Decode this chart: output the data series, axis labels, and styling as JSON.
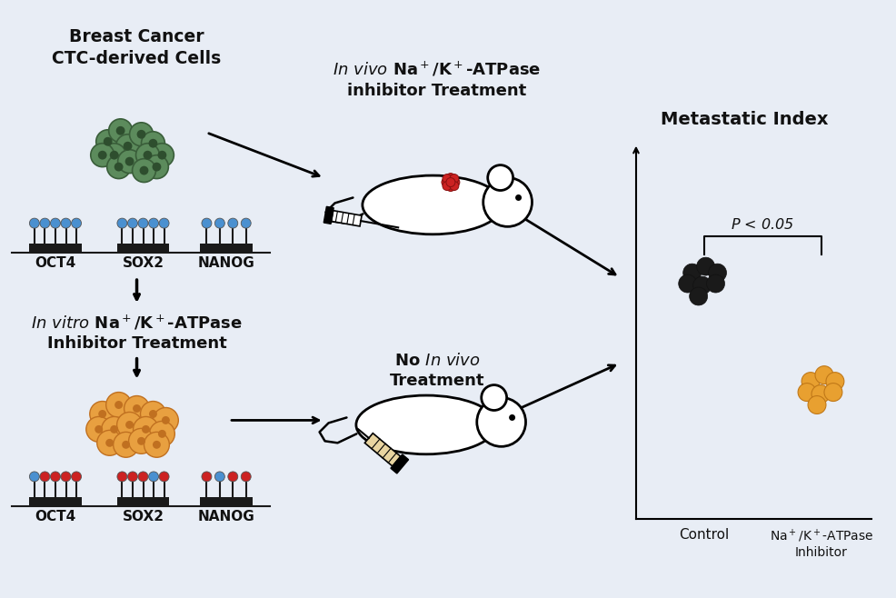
{
  "background_color": "#E8EDF5",
  "title_text": "Breast Cancer\nCTC-derived Cells",
  "invivo_treatment_title": "$\\it{In\\ vivo}$ Na$^+$/K$^+$-ATPase\ninhibitor Treatment",
  "invitro_treatment_title": "$\\it{In\\ vitro}$ Na$^+$/K$^+$-ATPase\nInhibitor Treatment",
  "no_treatment_title": "No $\\it{In\\ vivo}$\nTreatment",
  "metastatic_index_title": "Metastatic Index",
  "p_value_text": "$P$ < 0.05",
  "control_label": "Control",
  "inhibitor_label": "Na$^+$/K$^+$-ATPase\nInhibitor",
  "oct4_label": "OCT4",
  "sox2_label": "SOX2",
  "nanog_label": "NANOG",
  "green_cell_fill": "#5C8B5C",
  "green_cell_edge": "#3A5E3A",
  "green_cell_inner": "#2E4E2E",
  "orange_cell_fill": "#E8A040",
  "orange_cell_edge": "#C07020",
  "orange_cell_inner": "#C07020",
  "blue_dot_color": "#4A90D0",
  "red_dot_color": "#CC2222",
  "black_cell_color": "#1A1A1A",
  "gold_cell_color": "#E8A030",
  "gold_cell_edge": "#C07818",
  "tumor_color": "#CC2222",
  "tumor_edge": "#881111"
}
